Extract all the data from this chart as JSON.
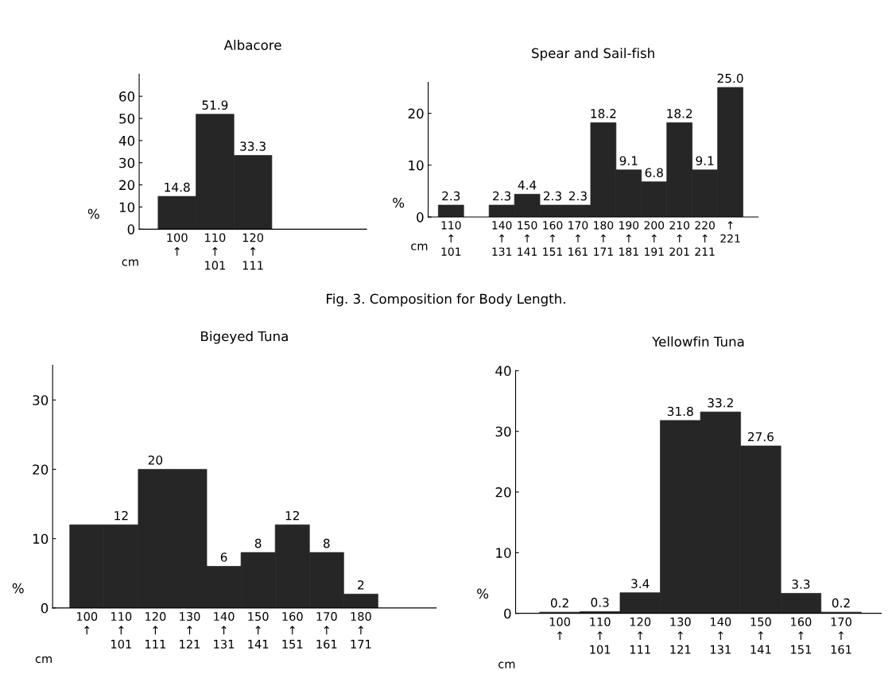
{
  "chart_data": [
    {
      "type": "bar",
      "title": "Albacore",
      "ylabel": "%",
      "categories": [
        "100\n↑",
        "110\n↑\n101",
        "120\n↑\n111"
      ],
      "values": [
        14.8,
        51.9,
        33.3
      ],
      "color": "#262626",
      "ylim": [
        0,
        70
      ],
      "yticks": [
        0,
        10,
        20,
        30,
        40,
        50,
        60
      ],
      "data_labels": true,
      "annotations": [
        "cm"
      ]
    },
    {
      "type": "bar",
      "title": "Spear and Sail-fish",
      "ylabel": "%",
      "categories": [
        "110\n↑\n101",
        null,
        "140\n↑\n131",
        "150\n↑\n141",
        "160\n↑\n151",
        "170\n↑\n161",
        "180\n↑\n171",
        "190\n↑\n181",
        "200\n↑\n191",
        "210\n↑\n201",
        "220\n↑\n211",
        "↑\n221"
      ],
      "values": [
        2.3,
        null,
        2.3,
        4.4,
        2.3,
        2.3,
        18.2,
        9.1,
        6.8,
        18.2,
        9.1,
        25.0
      ],
      "value_labels": [
        "2.3",
        null,
        "2.3",
        "4.4",
        "2.3",
        "2.3",
        "18.2",
        "9.1",
        "6.8",
        "18.2",
        "9.1",
        "25.0"
      ],
      "color": "#262626",
      "ylim": [
        0,
        26
      ],
      "yticks": [
        0,
        10,
        20
      ],
      "annotations": [
        "cm",
        "Fig. 3. Composition for Body Length."
      ]
    },
    {
      "type": "bar",
      "title": "Bigeyed Tuna",
      "ylabel": "%",
      "categories": [
        "100\n↑",
        "110\n↑\n101",
        "120\n↑\n111",
        "130\n↑\n121",
        "140\n↑\n131",
        "150\n↑\n141",
        "160\n↑\n151",
        "170\n↑\n161",
        "180\n↑\n171"
      ],
      "values": [
        12,
        12,
        20,
        20,
        6,
        8,
        12,
        8,
        2
      ],
      "value_labels": [
        null,
        "12",
        "20",
        null,
        "6",
        "8",
        "12",
        "8",
        "2"
      ],
      "color": "#262626",
      "ylim": [
        0,
        35
      ],
      "yticks": [
        0,
        10,
        20,
        30
      ],
      "annotations": [
        "cm"
      ]
    },
    {
      "type": "bar",
      "title": "Yellowfin Tuna",
      "ylabel": "%",
      "categories": [
        "100\n↑",
        "110\n↑\n101",
        "120\n↑\n111",
        "130\n↑\n121",
        "140\n↑\n131",
        "150\n↑\n141",
        "160\n↑\n151",
        "170\n↑\n161"
      ],
      "values": [
        0.2,
        0.3,
        3.4,
        31.8,
        33.2,
        27.6,
        3.3,
        0.2
      ],
      "color": "#262626",
      "ylim": [
        0,
        40
      ],
      "yticks": [
        0,
        10,
        20,
        30,
        40
      ],
      "data_labels": true,
      "annotations": [
        "cm"
      ]
    }
  ]
}
